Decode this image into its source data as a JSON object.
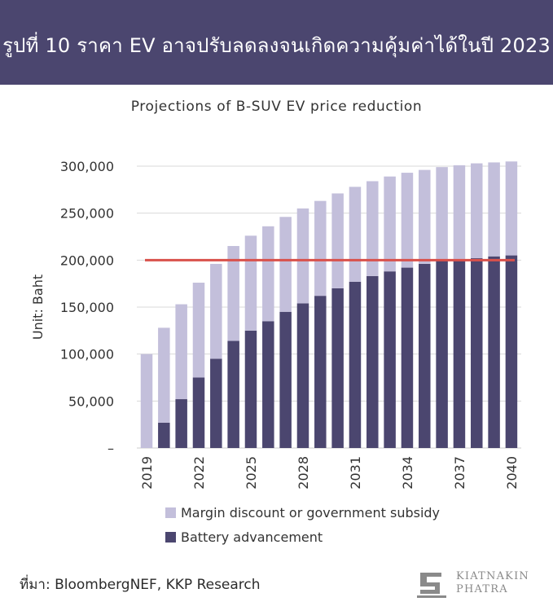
{
  "header": {
    "title": "รูปที่ 10 ราคา EV อาจปรับลดลงจนเกิดความคุ้มค่าได้ในปี 2023"
  },
  "footer": {
    "source": "ที่มา: BloombergNEF, KKP Research"
  },
  "logo": {
    "line1": "KIATNAKIN",
    "line2": "PHATRA"
  },
  "chart_data": {
    "type": "bar",
    "stacked": true,
    "title": "Projections of B-SUV EV price reduction",
    "ylabel": "Unit: Baht",
    "xlabel": "",
    "ylim": [
      0,
      300000
    ],
    "yticks": [
      0,
      50000,
      100000,
      150000,
      200000,
      250000,
      300000
    ],
    "ytick_labels": [
      "–",
      "50,000",
      "100,000",
      "150,000",
      "200,000",
      "250,000",
      "300,000"
    ],
    "grid": true,
    "categories": [
      "2019",
      "2020",
      "2021",
      "2022",
      "2023",
      "2024",
      "2025",
      "2026",
      "2027",
      "2028",
      "2029",
      "2030",
      "2031",
      "2032",
      "2033",
      "2034",
      "2035",
      "2036",
      "2037",
      "2038",
      "2039",
      "2040"
    ],
    "xtick_labels": [
      "2019",
      "",
      "",
      "2022",
      "",
      "",
      "2025",
      "",
      "",
      "2028",
      "",
      "",
      "2031",
      "",
      "",
      "2034",
      "",
      "",
      "2037",
      "",
      "",
      "2040"
    ],
    "series": [
      {
        "name": "Battery advancement",
        "color": "#4b466f",
        "values": [
          0,
          27000,
          52000,
          75000,
          95000,
          114000,
          125000,
          135000,
          145000,
          154000,
          162000,
          170000,
          177000,
          183000,
          188000,
          192000,
          196000,
          199000,
          200000,
          202000,
          204000,
          205000
        ]
      },
      {
        "name": "Margin discount or government subsidy",
        "color": "#c3bfdb",
        "values": [
          100000,
          101000,
          101000,
          101000,
          101000,
          101000,
          101000,
          101000,
          101000,
          101000,
          101000,
          101000,
          101000,
          101000,
          101000,
          101000,
          100000,
          100000,
          101000,
          101000,
          100000,
          100000
        ]
      }
    ],
    "reference_line": {
      "value": 200000,
      "color": "#d9514b"
    },
    "legend_position": "bottom",
    "legend_order": [
      1,
      0
    ]
  }
}
